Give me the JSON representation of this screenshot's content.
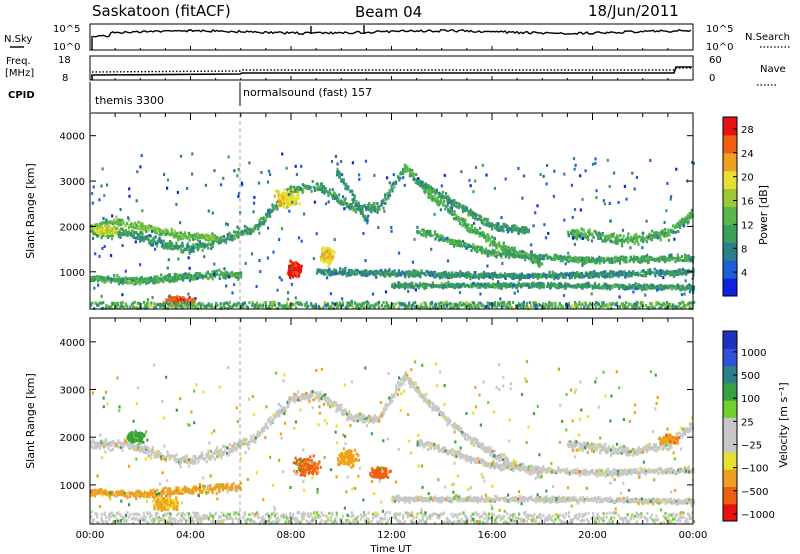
{
  "header": {
    "station": "Saskatoon (fitACF)",
    "beam": "Beam 04",
    "date": "18/Jun/2011"
  },
  "summary_panels": {
    "nsky_label": "N.Sky",
    "nsky_ticks": [
      "10^5",
      "10^0"
    ],
    "nsearch_label": "N.Search",
    "nsearch_ticks": [
      "10^5",
      "10^0"
    ],
    "freq_label_1": "Freq.",
    "freq_label_2": "[MHz]",
    "freq_ticks": [
      "18",
      "8"
    ],
    "nave_label": "Nave",
    "nave_ticks": [
      "60",
      "0"
    ],
    "cpid_label": "CPID",
    "cpid_segments": [
      {
        "start_hour": 0,
        "text": "themis 3300"
      },
      {
        "start_hour": 6,
        "text": "normalsound (fast) 157"
      }
    ]
  },
  "chart_data": [
    {
      "type": "heatmap",
      "title": "",
      "xlabel": "Time UT",
      "ylabel": "Slant Range [km]",
      "xlim_hours": [
        0,
        24
      ],
      "x_ticks": [
        "00:00",
        "04:00",
        "08:00",
        "12:00",
        "16:00",
        "20:00",
        "00:00"
      ],
      "ylim": [
        180,
        4500
      ],
      "y_ticks": [
        1000,
        2000,
        3000,
        4000
      ],
      "colorbar": {
        "label": "Power [dB]",
        "ticks": [
          4,
          8,
          12,
          16,
          20,
          24,
          28
        ],
        "range": [
          0,
          30
        ],
        "colors": [
          "#1020e0",
          "#1d5fd8",
          "#2f7f8a",
          "#3a9f5a",
          "#58b848",
          "#9cc838",
          "#e8e030",
          "#f0a020",
          "#f06010",
          "#e81010"
        ]
      },
      "echo_bands": [
        {
          "points": [
            [
              0,
              1850
            ],
            [
              1.5,
              1850
            ],
            [
              3,
              1600
            ],
            [
              4,
              1500
            ],
            [
              5.5,
              1750
            ],
            [
              6.5,
              1950
            ],
            [
              7.2,
              2350
            ],
            [
              8,
              2800
            ],
            [
              9,
              2900
            ],
            [
              10.5,
              2400
            ],
            [
              11.5,
              2400
            ],
            [
              12.5,
              3300
            ]
          ],
          "width_km": 200,
          "power_db": 10
        },
        {
          "points": [
            [
              0,
              2000
            ],
            [
              1,
              2100
            ],
            [
              2,
              2000
            ],
            [
              3.5,
              1800
            ],
            [
              5,
              1750
            ]
          ],
          "width_km": 150,
          "power_db": 14
        },
        {
          "points": [
            [
              12.5,
              3300
            ],
            [
              13.5,
              2700
            ],
            [
              15,
              2000
            ],
            [
              16.5,
              1500
            ],
            [
              18,
              1200
            ]
          ],
          "width_km": 180,
          "power_db": 12
        },
        {
          "points": [
            [
              13,
              3000
            ],
            [
              14.5,
              2500
            ],
            [
              16,
              2000
            ],
            [
              17.5,
              1900
            ]
          ],
          "width_km": 150,
          "power_db": 10
        },
        {
          "points": [
            [
              13,
              1900
            ],
            [
              16,
              1400
            ],
            [
              20,
              1250
            ],
            [
              24,
              1300
            ]
          ],
          "width_km": 130,
          "power_db": 11
        },
        {
          "points": [
            [
              9,
              1000
            ],
            [
              13,
              950
            ],
            [
              17,
              900
            ],
            [
              21,
              950
            ],
            [
              24,
              1000
            ]
          ],
          "width_km": 120,
          "power_db": 9
        },
        {
          "points": [
            [
              12,
              700
            ],
            [
              18,
              700
            ],
            [
              24,
              650
            ]
          ],
          "width_km": 100,
          "power_db": 10
        },
        {
          "points": [
            [
              19,
              1850
            ],
            [
              21.5,
              1700
            ],
            [
              23,
              1850
            ],
            [
              24,
              2300
            ]
          ],
          "width_km": 200,
          "power_db": 12
        },
        {
          "points": [
            [
              0,
              850
            ],
            [
              2,
              800
            ],
            [
              4,
              900
            ],
            [
              6,
              950
            ]
          ],
          "width_km": 150,
          "power_db": 11
        },
        {
          "points": [
            [
              9.8,
              3200
            ],
            [
              10.5,
              2600
            ],
            [
              11,
              2100
            ]
          ],
          "width_km": 170,
          "power_db": 9
        }
      ],
      "intense_patches": [
        {
          "center": [
            8.1,
            1050
          ],
          "size": [
            0.7,
            450
          ],
          "power_db": 28
        },
        {
          "center": [
            9.4,
            1350
          ],
          "size": [
            0.7,
            500
          ],
          "power_db": 20
        },
        {
          "center": [
            3.5,
            360
          ],
          "size": [
            1.6,
            250
          ],
          "power_db": 26
        },
        {
          "center": [
            7.8,
            2600
          ],
          "size": [
            1.2,
            500
          ],
          "power_db": 20
        },
        {
          "center": [
            0.6,
            1900
          ],
          "size": [
            1.2,
            250
          ],
          "power_db": 18
        }
      ],
      "ground_strip": {
        "range_km": [
          190,
          330
        ],
        "power_db": 12
      }
    },
    {
      "type": "heatmap",
      "title": "",
      "xlabel": "Time UT",
      "ylabel": "Slant Range [km]",
      "xlim_hours": [
        0,
        24
      ],
      "x_ticks": [
        "00:00",
        "04:00",
        "08:00",
        "12:00",
        "16:00",
        "20:00",
        "00:00"
      ],
      "ylim": [
        180,
        4500
      ],
      "y_ticks": [
        1000,
        2000,
        3000,
        4000
      ],
      "colorbar": {
        "label": "Velocity [m s⁻¹]",
        "ticks": [
          "1000",
          "500",
          "100",
          "25",
          "−25",
          "−100",
          "−500",
          "−1000"
        ],
        "colors": [
          "#2030c0",
          "#3050d8",
          "#2f7f8a",
          "#38a040",
          "#70d030",
          "#c8c8c8",
          "#c8c8c8",
          "#e8e030",
          "#f0a020",
          "#f06010",
          "#e81010"
        ]
      },
      "echo_bands": [
        {
          "points": [
            [
              0,
              1850
            ],
            [
              1.5,
              1850
            ],
            [
              3,
              1600
            ],
            [
              4,
              1500
            ],
            [
              5.5,
              1750
            ],
            [
              6.5,
              1950
            ],
            [
              7.2,
              2350
            ],
            [
              8,
              2800
            ],
            [
              9,
              2900
            ],
            [
              10.5,
              2400
            ],
            [
              11.5,
              2400
            ],
            [
              12.5,
              3300
            ]
          ],
          "width_km": 200,
          "velocity": 0
        },
        {
          "points": [
            [
              12.5,
              3300
            ],
            [
              13.5,
              2700
            ],
            [
              15,
              2000
            ],
            [
              16.5,
              1500
            ],
            [
              18,
              1200
            ]
          ],
          "width_km": 160,
          "velocity": 0
        },
        {
          "points": [
            [
              13,
              1900
            ],
            [
              16,
              1400
            ],
            [
              20,
              1250
            ],
            [
              24,
              1300
            ]
          ],
          "width_km": 120,
          "velocity": 0
        },
        {
          "points": [
            [
              19,
              1850
            ],
            [
              21.5,
              1700
            ],
            [
              23,
              1850
            ],
            [
              24,
              2300
            ]
          ],
          "width_km": 200,
          "velocity": 0
        },
        {
          "points": [
            [
              0,
              850
            ],
            [
              2,
              800
            ],
            [
              4,
              900
            ],
            [
              6,
              950
            ]
          ],
          "width_km": 150,
          "velocity": -150
        },
        {
          "points": [
            [
              12,
              700
            ],
            [
              18,
              700
            ],
            [
              24,
              650
            ]
          ],
          "width_km": 100,
          "velocity": 0
        }
      ],
      "velocity_patches": [
        {
          "center": [
            8.6,
            1400
          ],
          "size": [
            1.4,
            500
          ],
          "velocity": -300
        },
        {
          "center": [
            10.2,
            1550
          ],
          "size": [
            1.2,
            450
          ],
          "velocity": -150
        },
        {
          "center": [
            11.5,
            1250
          ],
          "size": [
            1.0,
            300
          ],
          "velocity": -400
        },
        {
          "center": [
            3.0,
            600
          ],
          "size": [
            1.6,
            350
          ],
          "velocity": -120
        },
        {
          "center": [
            1.8,
            2000
          ],
          "size": [
            1.0,
            300
          ],
          "velocity": 150
        },
        {
          "center": [
            23,
            1950
          ],
          "size": [
            1.0,
            250
          ],
          "velocity": -200
        }
      ],
      "ground_strip": {
        "range_km": [
          190,
          420
        ],
        "velocity": 30
      }
    }
  ]
}
